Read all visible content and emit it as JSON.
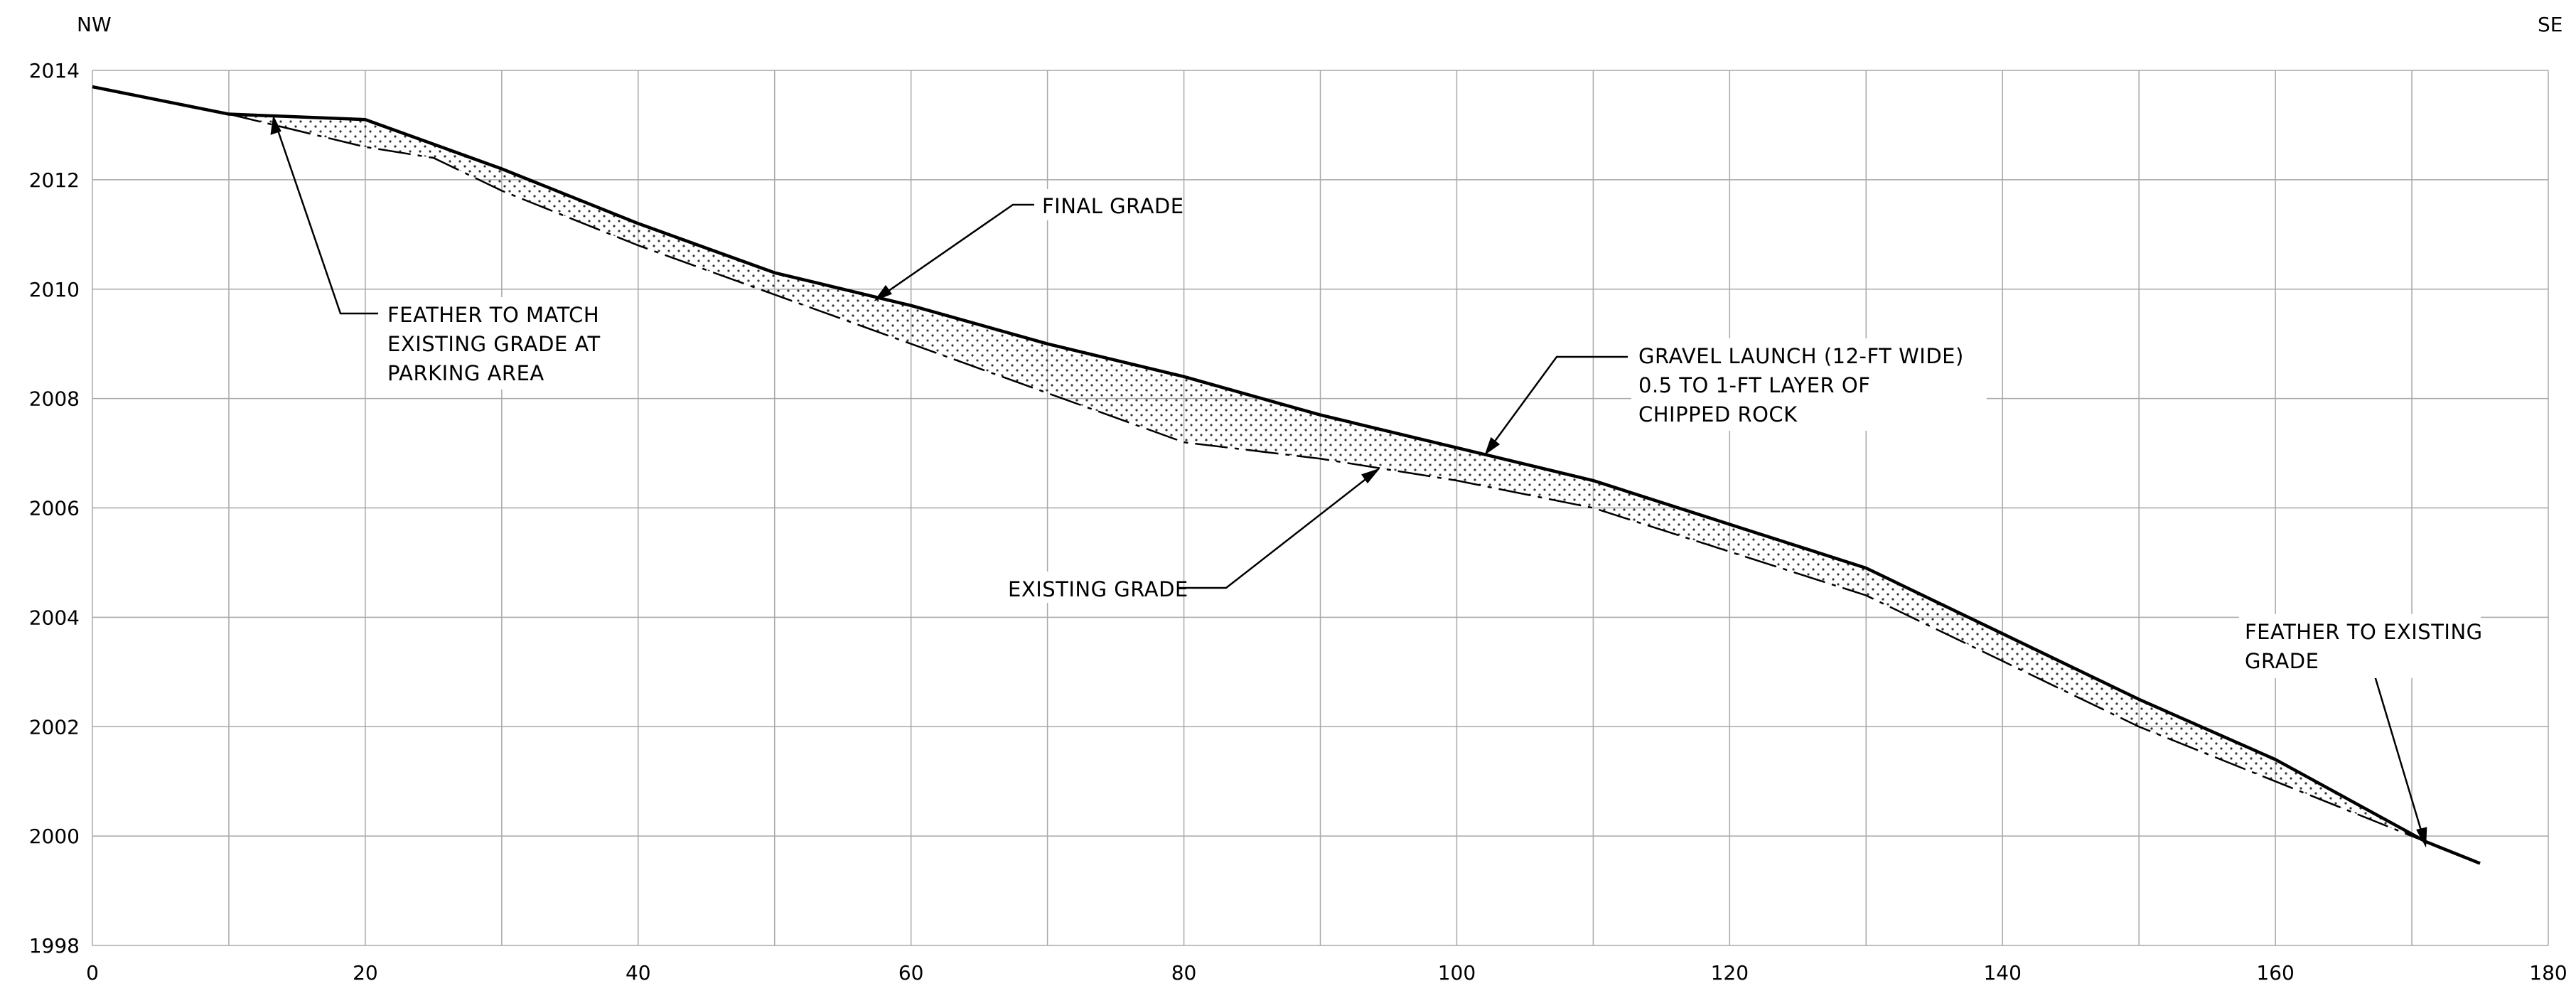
{
  "directions": {
    "left": "NW",
    "right": "SE"
  },
  "x_axis": {
    "ticks": [
      "0",
      "20",
      "40",
      "60",
      "80",
      "100",
      "120",
      "140",
      "160",
      "180"
    ]
  },
  "y_axis": {
    "ticks": [
      "1998",
      "2000",
      "2002",
      "2004",
      "2006",
      "2008",
      "2010",
      "2012",
      "2014"
    ]
  },
  "annotations": {
    "final_grade": [
      "FINAL GRADE"
    ],
    "feather_parking": [
      "FEATHER TO MATCH",
      "EXISTING GRADE AT",
      "PARKING AREA"
    ],
    "gravel_launch": [
      "GRAVEL LAUNCH (12-FT WIDE)",
      "0.5 TO 1-FT LAYER OF",
      "CHIPPED ROCK"
    ],
    "existing_grade": [
      "EXISTING GRADE"
    ],
    "feather_existing": [
      "FEATHER TO EXISTING",
      "GRADE"
    ]
  },
  "chart_data": {
    "type": "line",
    "xlim": [
      0,
      180
    ],
    "ylim": [
      1998,
      2014
    ],
    "grid": true,
    "series": [
      {
        "style": "solid",
        "points": [
          [
            0,
            2013.7
          ],
          [
            10,
            2013.2
          ],
          [
            20,
            2013.1
          ],
          [
            30,
            2012.2
          ],
          [
            40,
            2011.2
          ],
          [
            50,
            2010.3
          ],
          [
            60,
            2009.7
          ],
          [
            70,
            2009.0
          ],
          [
            80,
            2008.4
          ],
          [
            90,
            2007.7
          ],
          [
            100,
            2007.1
          ],
          [
            110,
            2006.5
          ],
          [
            120,
            2005.7
          ],
          [
            130,
            2004.9
          ],
          [
            140,
            2003.7
          ],
          [
            150,
            2002.5
          ],
          [
            160,
            2001.4
          ],
          [
            171,
            1999.9
          ],
          [
            175,
            1999.5
          ]
        ]
      },
      {
        "style": "dash-dot",
        "points": [
          [
            10,
            2013.2
          ],
          [
            20,
            2012.6
          ],
          [
            25,
            2012.4
          ],
          [
            30,
            2011.8
          ],
          [
            40,
            2010.8
          ],
          [
            50,
            2009.9
          ],
          [
            60,
            2009.0
          ],
          [
            70,
            2008.1
          ],
          [
            80,
            2007.2
          ],
          [
            90,
            2006.9
          ],
          [
            100,
            2006.5
          ],
          [
            110,
            2006.0
          ],
          [
            120,
            2005.2
          ],
          [
            130,
            2004.4
          ],
          [
            140,
            2003.2
          ],
          [
            150,
            2002.0
          ],
          [
            160,
            2001.0
          ],
          [
            171,
            1999.9
          ]
        ]
      }
    ]
  }
}
